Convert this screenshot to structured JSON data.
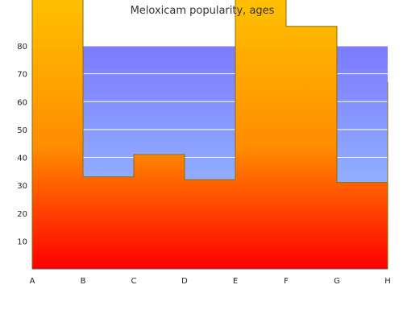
{
  "chart_data": {
    "type": "area",
    "title": "Meloxicam popularity, ages",
    "xlabel": "",
    "ylabel": "",
    "categories": [
      "A",
      "B",
      "C",
      "D",
      "E",
      "F",
      "G",
      "H"
    ],
    "y_ticks": [
      10,
      20,
      30,
      40,
      50,
      60,
      70,
      80
    ],
    "ylim": [
      0,
      80
    ],
    "values": [
      101,
      33,
      41,
      32,
      101,
      87,
      31,
      67
    ],
    "style": "step",
    "grid": true,
    "legend": "none",
    "colors": {
      "plot_top": "#7b7bff",
      "plot_bottom": "#a0ceff",
      "area_top": "#ffc000",
      "area_mid": "#ff8c00",
      "area_bottom": "#ff0000",
      "outline": "#8a7000",
      "grid": "#ffffff",
      "axis": "#555555"
    }
  }
}
